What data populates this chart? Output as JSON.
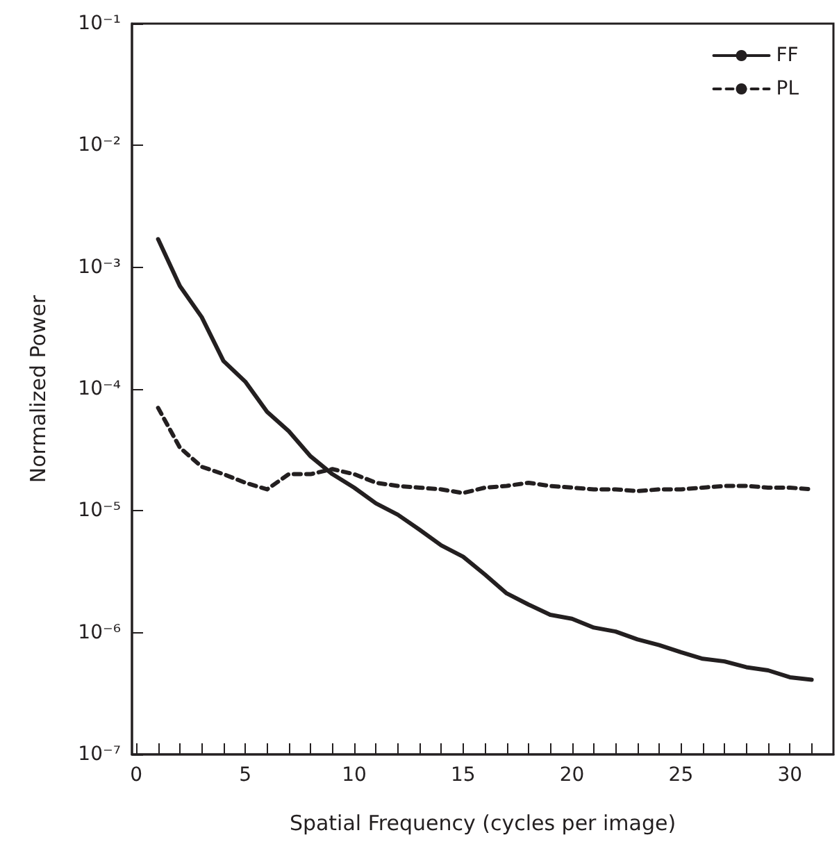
{
  "chart_data": {
    "type": "line",
    "xlabel": "Spatial Frequency (cycles per image)",
    "ylabel": "Normalized Power",
    "x": [
      1,
      2,
      3,
      4,
      5,
      6,
      7,
      8,
      9,
      10,
      11,
      12,
      13,
      14,
      15,
      16,
      17,
      18,
      19,
      20,
      21,
      22,
      23,
      24,
      25,
      26,
      27,
      28,
      29,
      30,
      31
    ],
    "series": [
      {
        "name": "FF",
        "color": "#231f20",
        "line_style": "solid",
        "values": [
          0.0017,
          0.0007,
          0.00039,
          0.00017,
          0.000115,
          6.5e-05,
          4.5e-05,
          2.8e-05,
          2e-05,
          1.55e-05,
          1.15e-05,
          9.3e-06,
          7e-06,
          5.2e-06,
          4.2e-06,
          3e-06,
          2.1e-06,
          1.7e-06,
          1.4e-06,
          1.3e-06,
          1.1e-06,
          1.02e-06,
          8.8e-07,
          7.9e-07,
          6.9e-07,
          6.1e-07,
          5.8e-07,
          5.2e-07,
          4.9e-07,
          4.3e-07,
          4.1e-07
        ]
      },
      {
        "name": "PL",
        "color": "#231f20",
        "line_style": "dashed",
        "values": [
          7e-05,
          3.3e-05,
          2.3e-05,
          2e-05,
          1.7e-05,
          1.5e-05,
          2e-05,
          2e-05,
          2.2e-05,
          2e-05,
          1.7e-05,
          1.6e-05,
          1.55e-05,
          1.5e-05,
          1.4e-05,
          1.55e-05,
          1.6e-05,
          1.7e-05,
          1.6e-05,
          1.55e-05,
          1.5e-05,
          1.5e-05,
          1.45e-05,
          1.5e-05,
          1.5e-05,
          1.55e-05,
          1.6e-05,
          1.6e-05,
          1.55e-05,
          1.55e-05,
          1.5e-05
        ]
      }
    ],
    "xlim": [
      -0.2,
      32
    ],
    "xticks": [
      0,
      {
        "value": 1,
        "label": null
      },
      {
        "value": 2,
        "label": null
      },
      {
        "value": 3,
        "label": null
      },
      {
        "value": 4,
        "label": null
      },
      5,
      {
        "value": 6,
        "label": null
      },
      {
        "value": 7,
        "label": null
      },
      {
        "value": 8,
        "label": null
      },
      {
        "value": 9,
        "label": null
      },
      10,
      {
        "value": 11,
        "label": null
      },
      {
        "value": 12,
        "label": null
      },
      {
        "value": 13,
        "label": null
      },
      {
        "value": 14,
        "label": null
      },
      15,
      {
        "value": 16,
        "label": null
      },
      {
        "value": 17,
        "label": null
      },
      {
        "value": 18,
        "label": null
      },
      {
        "value": 19,
        "label": null
      },
      20,
      {
        "value": 21,
        "label": null
      },
      {
        "value": 22,
        "label": null
      },
      {
        "value": 23,
        "label": null
      },
      {
        "value": 24,
        "label": null
      },
      25,
      {
        "value": 26,
        "label": null
      },
      {
        "value": 27,
        "label": null
      },
      {
        "value": 28,
        "label": null
      },
      {
        "value": 29,
        "label": null
      },
      30,
      {
        "value": 31,
        "label": null
      }
    ],
    "ylim": [
      1e-07,
      0.1
    ],
    "yticks": [
      {
        "value": 1e-07,
        "label": "10⁻⁷"
      },
      {
        "value": 1e-06,
        "label": "10⁻⁶"
      },
      {
        "value": 1e-05,
        "label": "10⁻⁵"
      },
      {
        "value": 0.0001,
        "label": "10⁻⁴"
      },
      {
        "value": 0.001,
        "label": "10⁻³"
      },
      {
        "value": 0.01,
        "label": "10⁻²"
      },
      {
        "value": 0.1,
        "label": "10⁻¹"
      }
    ],
    "log": "y",
    "grid": false,
    "legend": "top right",
    "marker": "none"
  }
}
